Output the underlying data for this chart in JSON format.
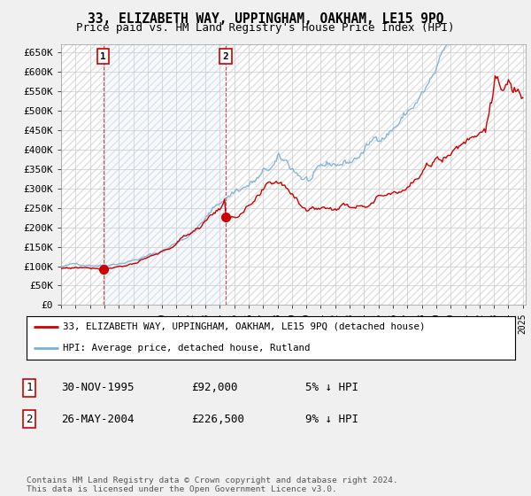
{
  "title": "33, ELIZABETH WAY, UPPINGHAM, OAKHAM, LE15 9PQ",
  "subtitle": "Price paid vs. HM Land Registry's House Price Index (HPI)",
  "ylabel_ticks": [
    "£0",
    "£50K",
    "£100K",
    "£150K",
    "£200K",
    "£250K",
    "£300K",
    "£350K",
    "£400K",
    "£450K",
    "£500K",
    "£550K",
    "£600K",
    "£650K"
  ],
  "ytick_values": [
    0,
    50000,
    100000,
    150000,
    200000,
    250000,
    300000,
    350000,
    400000,
    450000,
    500000,
    550000,
    600000,
    650000
  ],
  "xlim_start": 1993.0,
  "xlim_end": 2025.2,
  "ylim_min": 0,
  "ylim_max": 670000,
  "price_paid_color": "#cc0000",
  "hpi_color": "#7ab0d4",
  "hpi_fill_color": "#ddeeff",
  "sale1_date": 1995.92,
  "sale1_price": 92000,
  "sale1_label": "1",
  "sale2_date": 2004.4,
  "sale2_price": 226500,
  "sale2_label": "2",
  "legend_line1": "33, ELIZABETH WAY, UPPINGHAM, OAKHAM, LE15 9PQ (detached house)",
  "legend_line2": "HPI: Average price, detached house, Rutland",
  "table_row1": [
    "1",
    "30-NOV-1995",
    "£92,000",
    "5% ↓ HPI"
  ],
  "table_row2": [
    "2",
    "26-MAY-2004",
    "£226,500",
    "9% ↓ HPI"
  ],
  "footer": "Contains HM Land Registry data © Crown copyright and database right 2024.\nThis data is licensed under the Open Government Licence v3.0.",
  "bg_color": "#f0f0f0",
  "plot_bg_color": "#ffffff",
  "grid_color": "#cccccc"
}
